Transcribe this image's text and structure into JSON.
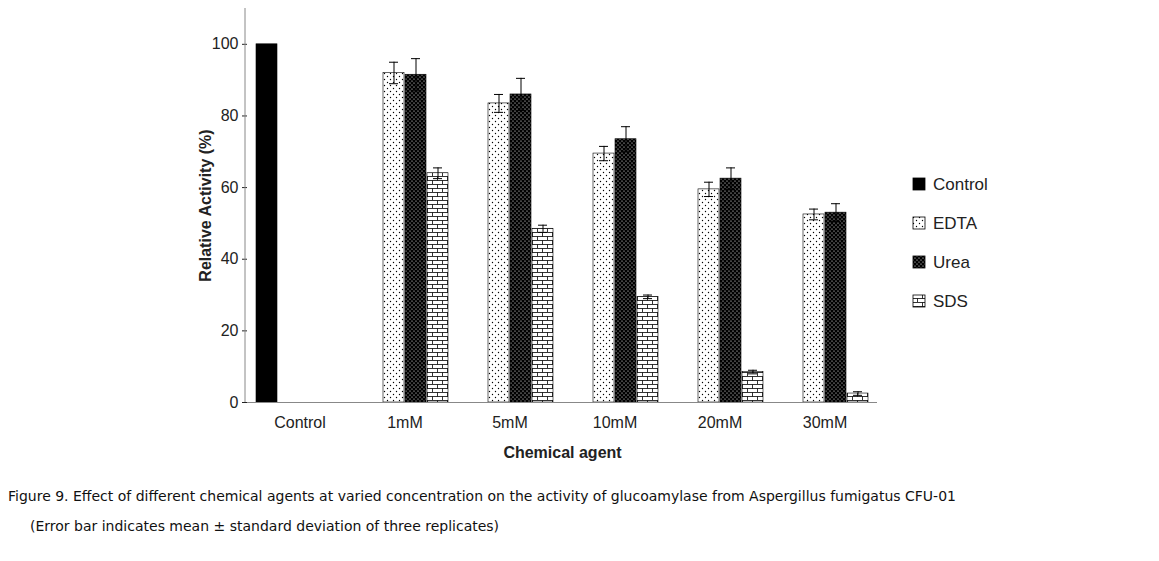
{
  "chart_data": {
    "type": "bar",
    "title": "Figure 9. Effect of different chemical agents at varied concentration on the activity of glucoamylase from Aspergillus fumigatus CFU-01",
    "subtitle": "(Error bar indicates mean ± standard deviation of three replicates)",
    "x_label": "Chemical agent",
    "y_label": "Relative Activity (%)",
    "categories": [
      "Control",
      "1mM",
      "5mM",
      "10mM",
      "20mM",
      "30mM"
    ],
    "series": [
      {
        "name": "Control",
        "color": "#000000",
        "values": [
          100,
          null,
          null,
          null,
          null,
          null
        ],
        "errors": [
          null,
          null,
          null,
          null,
          null,
          null
        ]
      },
      {
        "name": "EDTA",
        "color": "#ffffff",
        "values": [
          null,
          92,
          83.5,
          69.5,
          59.5,
          52.5
        ],
        "errors": [
          null,
          3,
          2.5,
          2,
          2,
          1.5
        ]
      },
      {
        "name": "Urea",
        "color": "#000000",
        "values": [
          null,
          91.5,
          86,
          73.5,
          62.5,
          53
        ],
        "errors": [
          null,
          4.5,
          4.5,
          3.5,
          3,
          2.5
        ]
      },
      {
        "name": "SDS",
        "color": "#ffffff",
        "values": [
          null,
          64,
          48.5,
          29.5,
          8.5,
          2.5
        ],
        "errors": [
          null,
          1.5,
          1,
          0.5,
          0.5,
          0.5
        ]
      }
    ],
    "ylim": [
      0,
      110
    ],
    "yticks": [
      0,
      20,
      40,
      60,
      80,
      100
    ],
    "legend": "right"
  }
}
